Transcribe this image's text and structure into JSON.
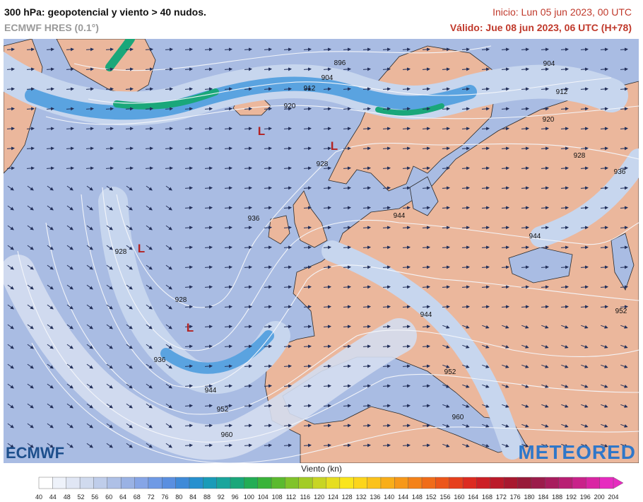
{
  "header": {
    "title": "300 hPa: geopotencial y viento > 40 nudos.",
    "model": "ECMWF HRES (0.1°)",
    "init": "Inicio: Lun 05 jun 2023, 00 UTC",
    "valid": "Válido: Jue 08 jun 2023, 06 UTC (H+78)"
  },
  "logos": {
    "left": "ECMWF",
    "right": "METEORED"
  },
  "map": {
    "contour_labels": [
      {
        "id": "c896",
        "text": "896"
      },
      {
        "id": "c904a",
        "text": "904"
      },
      {
        "id": "c912a",
        "text": "912"
      },
      {
        "id": "c920a",
        "text": "920"
      },
      {
        "id": "c904b",
        "text": "904"
      },
      {
        "id": "c912b",
        "text": "912"
      },
      {
        "id": "c920b",
        "text": "920"
      },
      {
        "id": "c928a",
        "text": "928"
      },
      {
        "id": "c928b",
        "text": "928"
      },
      {
        "id": "c936a",
        "text": "936"
      },
      {
        "id": "c936b",
        "text": "936"
      },
      {
        "id": "c928c",
        "text": "928"
      },
      {
        "id": "c944a",
        "text": "944"
      },
      {
        "id": "c928d",
        "text": "928"
      },
      {
        "id": "c944b",
        "text": "944"
      },
      {
        "id": "c952a",
        "text": "952"
      },
      {
        "id": "c936c",
        "text": "936"
      },
      {
        "id": "c944c",
        "text": "944"
      },
      {
        "id": "c952b",
        "text": "952"
      },
      {
        "id": "c952c",
        "text": "952"
      },
      {
        "id": "c960a",
        "text": "960"
      },
      {
        "id": "c960b",
        "text": "960"
      }
    ],
    "lows": [
      "L",
      "L",
      "L",
      "L"
    ],
    "colors": {
      "ocean": "#a9bce3",
      "land": "#ebb79c",
      "jet_low": "#c7d6ee",
      "jet_mid": "#5aa3e0",
      "jet_high": "#1aa77a",
      "low": "#b32222"
    }
  },
  "legend": {
    "title": "Viento (kn)",
    "ticks": [
      "40",
      "44",
      "48",
      "52",
      "56",
      "60",
      "64",
      "68",
      "72",
      "76",
      "80",
      "84",
      "88",
      "92",
      "96",
      "100",
      "104",
      "108",
      "112",
      "116",
      "120",
      "124",
      "128",
      "132",
      "136",
      "140",
      "144",
      "148",
      "152",
      "156",
      "160",
      "164",
      "168",
      "172",
      "176",
      "180",
      "184",
      "188",
      "192",
      "196",
      "200",
      "204"
    ],
    "colors": [
      "#ffffff",
      "#eef2fa",
      "#e0e6f4",
      "#d0daee",
      "#bfcdea",
      "#aec0e6",
      "#9ab2e4",
      "#86a5e6",
      "#6f9ae5",
      "#5a8fe0",
      "#3f8ad8",
      "#2790cf",
      "#1a9bb8",
      "#1aa59c",
      "#1aa77a",
      "#23ad55",
      "#3ab33a",
      "#5bba2f",
      "#80c32a",
      "#a3cc26",
      "#c8d524",
      "#e6de20",
      "#fae51c",
      "#fcd51b",
      "#fbc21a",
      "#f9ae19",
      "#f79819",
      "#f48219",
      "#f06c19",
      "#ec561a",
      "#e63f1c",
      "#dc2b20",
      "#cc1f25",
      "#bb1a2a",
      "#a8182f",
      "#981a3a",
      "#9b1c4b",
      "#a81d5e",
      "#b81f73",
      "#c9228a",
      "#d925a3",
      "#e62bbf"
    ]
  }
}
